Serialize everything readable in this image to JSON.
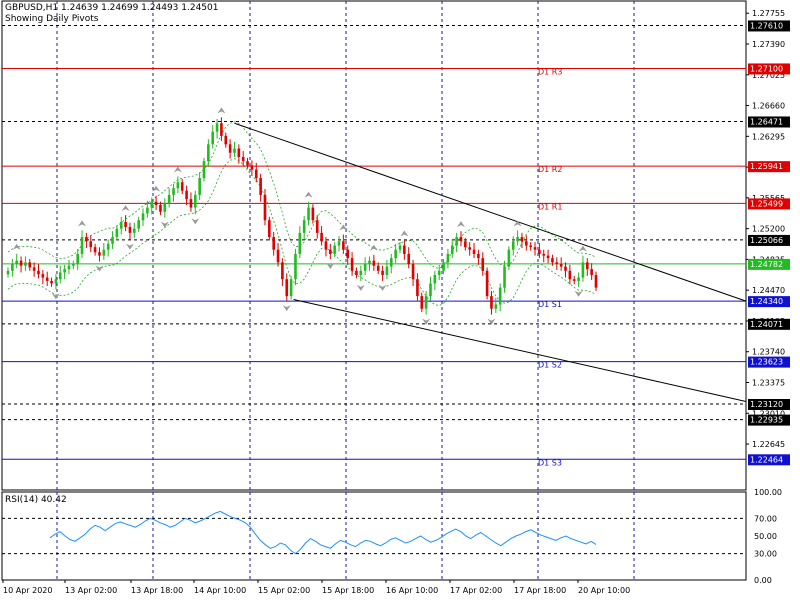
{
  "header": {
    "symbol_line": "GBPUSD,H1  1.24639 1.24699 1.24493 1.24501",
    "subtitle": "Showing Daily Pivots"
  },
  "rsi_header": "RSI(14) 40.42",
  "colors": {
    "grid": "#1a1aa8",
    "pivot_resistance": "#e00000",
    "pivot_support": "#1010d0",
    "pivot_main": "#22bb22",
    "bull_candle": "#22bb22",
    "bear_candle": "#e00000",
    "bands": "#22aa22",
    "rsi_line": "#1e90ff",
    "label_black": "#000000"
  },
  "chart_data": [
    {
      "type": "candlestick",
      "symbol": "GBPUSD",
      "timeframe": "H1",
      "ylim": [
        1.221,
        1.279
      ],
      "price_ticks": [
        "1.27755",
        "1.27390",
        "1.27025",
        "1.26660",
        "1.26295",
        "1.25930",
        "1.25565",
        "1.25200",
        "1.24835",
        "1.24470",
        "1.24105",
        "1.23740",
        "1.23375",
        "1.23010",
        "1.22645"
      ],
      "x_ticks": [
        "10 Apr 2020",
        "13 Apr 02:00",
        "13 Apr 18:00",
        "14 Apr 10:00",
        "15 Apr 02:00",
        "15 Apr 18:00",
        "16 Apr 10:00",
        "17 Apr 02:00",
        "17 Apr 18:00",
        "20 Apr 10:00"
      ],
      "pivot_lines": [
        {
          "label": "D1 R3",
          "value": 1.271,
          "tag": "1.27100",
          "kind": "resistance"
        },
        {
          "label": "D1 R2",
          "value": 1.25941,
          "tag": "1.25941",
          "kind": "resistance"
        },
        {
          "label": "D1 R1",
          "value": 1.25499,
          "tag": "1.25499",
          "kind": "resistance"
        },
        {
          "label": "",
          "value": 1.24782,
          "tag": "1.24782",
          "kind": "main"
        },
        {
          "label": "D1 S1",
          "value": 1.2434,
          "tag": "1.24340",
          "kind": "support"
        },
        {
          "label": "D1 S2",
          "value": 1.23623,
          "tag": "1.23623",
          "kind": "support"
        },
        {
          "label": "D1 S3",
          "value": 1.22464,
          "tag": "1.22464",
          "kind": "support"
        }
      ],
      "dashed_levels": [
        {
          "value": 1.2761,
          "tag": "1.27610"
        },
        {
          "value": 1.26471,
          "tag": "1.26471"
        },
        {
          "value": 1.25066,
          "tag": "1.25066"
        },
        {
          "value": 1.24071,
          "tag": "1.24071"
        },
        {
          "value": 1.2312,
          "tag": "1.23120"
        },
        {
          "value": 1.22935,
          "tag": "1.22935"
        }
      ],
      "channel_lines": [
        {
          "from": [
            0.3125,
            1.2645
          ],
          "to": [
            1.0,
            1.2434
          ]
        },
        {
          "from": [
            0.392,
            1.2436
          ],
          "to": [
            1.0,
            1.2315
          ]
        }
      ],
      "closes": [
        1.247,
        1.2478,
        1.2482,
        1.2476,
        1.248,
        1.2474,
        1.247,
        1.2466,
        1.2462,
        1.2458,
        1.2455,
        1.246,
        1.2468,
        1.2472,
        1.2476,
        1.2478,
        1.249,
        1.251,
        1.2505,
        1.2498,
        1.2492,
        1.2488,
        1.2495,
        1.2502,
        1.251,
        1.252,
        1.2528,
        1.2522,
        1.2515,
        1.252,
        1.253,
        1.2538,
        1.2545,
        1.2552,
        1.2548,
        1.254,
        1.255,
        1.256,
        1.2568,
        1.2575,
        1.2565,
        1.2555,
        1.2545,
        1.256,
        1.258,
        1.26,
        1.262,
        1.2635,
        1.2645,
        1.263,
        1.262,
        1.261,
        1.2615,
        1.2605,
        1.26,
        1.2595,
        1.259,
        1.258,
        1.256,
        1.253,
        1.251,
        1.2495,
        1.248,
        1.246,
        1.244,
        1.246,
        1.249,
        1.2515,
        1.253,
        1.2545,
        1.253,
        1.2515,
        1.2505,
        1.2495,
        1.249,
        1.25,
        1.2505,
        1.2495,
        1.2485,
        1.247,
        1.2465,
        1.247,
        1.2478,
        1.2482,
        1.2476,
        1.247,
        1.2465,
        1.2475,
        1.2485,
        1.2495,
        1.25,
        1.249,
        1.2478,
        1.246,
        1.244,
        1.2425,
        1.244,
        1.2455,
        1.2465,
        1.247,
        1.248,
        1.249,
        1.25,
        1.251,
        1.2505,
        1.2498,
        1.2495,
        1.249,
        1.2485,
        1.247,
        1.244,
        1.2425,
        1.243,
        1.245,
        1.2475,
        1.2495,
        1.2505,
        1.251,
        1.2505,
        1.25,
        1.2498,
        1.2495,
        1.249,
        1.2488,
        1.2485,
        1.248,
        1.2478,
        1.2475,
        1.247,
        1.246,
        1.2458,
        1.2462,
        1.248,
        1.2472,
        1.2465,
        1.245
      ],
      "rsi": {
        "ylim": [
          0,
          100
        ],
        "ticks": [
          "100.00",
          "70.00",
          "50.00",
          "30.00",
          "0.00"
        ],
        "levels": [
          70,
          30
        ],
        "values": [
          48,
          52,
          55,
          50,
          46,
          44,
          48,
          52,
          58,
          62,
          60,
          56,
          60,
          64,
          66,
          64,
          62,
          60,
          63,
          67,
          70,
          68,
          65,
          63,
          60,
          62,
          66,
          70,
          68,
          65,
          67,
          70,
          73,
          76,
          78,
          75,
          72,
          70,
          68,
          65,
          60,
          52,
          45,
          40,
          36,
          38,
          42,
          40,
          34,
          30,
          35,
          42,
          47,
          44,
          40,
          38,
          36,
          41,
          45,
          43,
          40,
          38,
          42,
          45,
          44,
          41,
          39,
          42,
          46,
          48,
          45,
          42,
          44,
          47,
          50,
          46,
          43,
          45,
          48,
          52,
          55,
          58,
          55,
          50,
          47,
          51,
          54,
          50,
          46,
          42,
          39,
          43,
          47,
          50,
          52,
          55,
          57,
          54,
          51,
          49,
          47,
          45,
          48,
          50,
          47,
          45,
          43,
          41,
          44,
          40.42
        ]
      }
    }
  ]
}
